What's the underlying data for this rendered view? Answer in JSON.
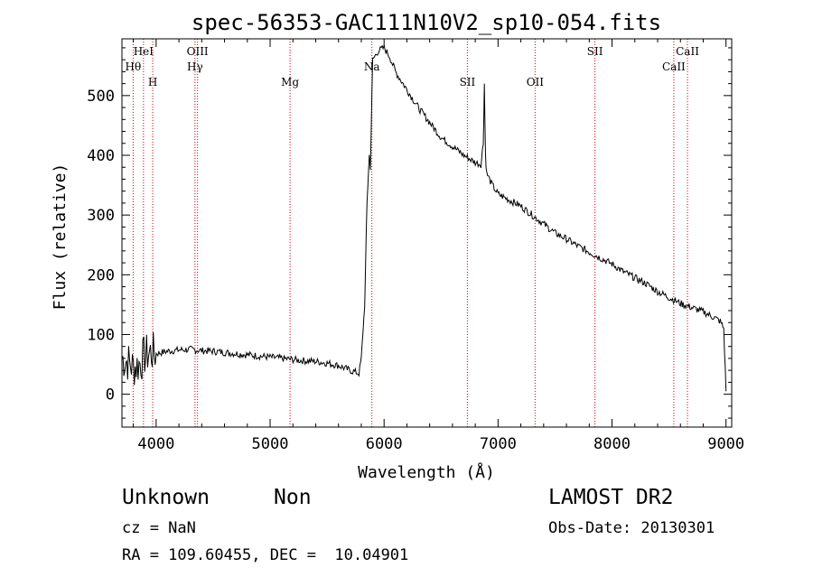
{
  "chart_data": {
    "type": "line",
    "title": "spec-56353-GAC111N10V2_sp10-054.fits",
    "xlabel": "Wavelength (Å)",
    "ylabel": "Flux (relative)",
    "xlim": [
      3700,
      9050
    ],
    "ylim": [
      -55,
      595
    ],
    "xticks": [
      4000,
      5000,
      6000,
      7000,
      8000,
      9000
    ],
    "yticks": [
      0,
      100,
      200,
      300,
      400,
      500
    ],
    "grid": false,
    "spectral_lines": [
      {
        "label": "Hθ",
        "wavelength": 3798,
        "row": "lower"
      },
      {
        "label": "HeI",
        "wavelength": 3889,
        "row": "upper"
      },
      {
        "label": "H",
        "wavelength": 3970,
        "row": "low"
      },
      {
        "label": "OIII",
        "wavelength": 4363,
        "row": "upper"
      },
      {
        "label": "Hγ",
        "wavelength": 4341,
        "row": "lower"
      },
      {
        "label": "Mg",
        "wavelength": 5175,
        "row": "low"
      },
      {
        "label": "Na",
        "wavelength": 5893,
        "row": "lower"
      },
      {
        "label": "SII",
        "wavelength": 6731,
        "row": "low"
      },
      {
        "label": "OII",
        "wavelength": 7325,
        "row": "low"
      },
      {
        "label": "SII",
        "wavelength": 7850,
        "row": "upper"
      },
      {
        "label": "CaII",
        "wavelength": 8542,
        "row": "lower"
      },
      {
        "label": "CaII",
        "wavelength": 8662,
        "row": "upper"
      }
    ],
    "series": [
      {
        "x": [
          3700,
          3750,
          3800,
          3850,
          3900,
          3950,
          4000,
          4100,
          4200,
          4300,
          4400,
          4500,
          4600,
          4700,
          4800,
          4900,
          5000,
          5100,
          5200,
          5300,
          5400,
          5500,
          5600,
          5700,
          5780,
          5800,
          5830,
          5850,
          5870,
          5880,
          5900,
          5950,
          6000,
          6050,
          6100,
          6200,
          6300,
          6400,
          6500,
          6600,
          6700,
          6800,
          6850,
          6870,
          6880,
          6890,
          6900,
          6950,
          7000,
          7100,
          7200,
          7300,
          7400,
          7500,
          7600,
          7700,
          7800,
          7900,
          8000,
          8100,
          8200,
          8300,
          8400,
          8500,
          8600,
          8700,
          8800,
          8900,
          8950,
          8980,
          9000
        ],
        "y": [
          60,
          55,
          45,
          50,
          65,
          70,
          68,
          72,
          74,
          75,
          73,
          72,
          70,
          68,
          66,
          64,
          62,
          60,
          58,
          56,
          55,
          52,
          48,
          40,
          35,
          60,
          150,
          320,
          400,
          380,
          560,
          575,
          580,
          565,
          540,
          510,
          480,
          455,
          430,
          415,
          400,
          388,
          385,
          420,
          520,
          400,
          370,
          350,
          335,
          325,
          315,
          300,
          285,
          270,
          260,
          248,
          238,
          228,
          218,
          205,
          195,
          185,
          172,
          162,
          152,
          145,
          138,
          128,
          122,
          110,
          5
        ],
        "noise": 6
      }
    ]
  },
  "footer": {
    "class_label": "Unknown",
    "subclass_label": "Non",
    "survey": "LAMOST DR2",
    "cz": "cz = NaN",
    "obs_date": "Obs-Date: 20130301",
    "coords": "RA = 109.60455, DEC =  10.04901"
  }
}
